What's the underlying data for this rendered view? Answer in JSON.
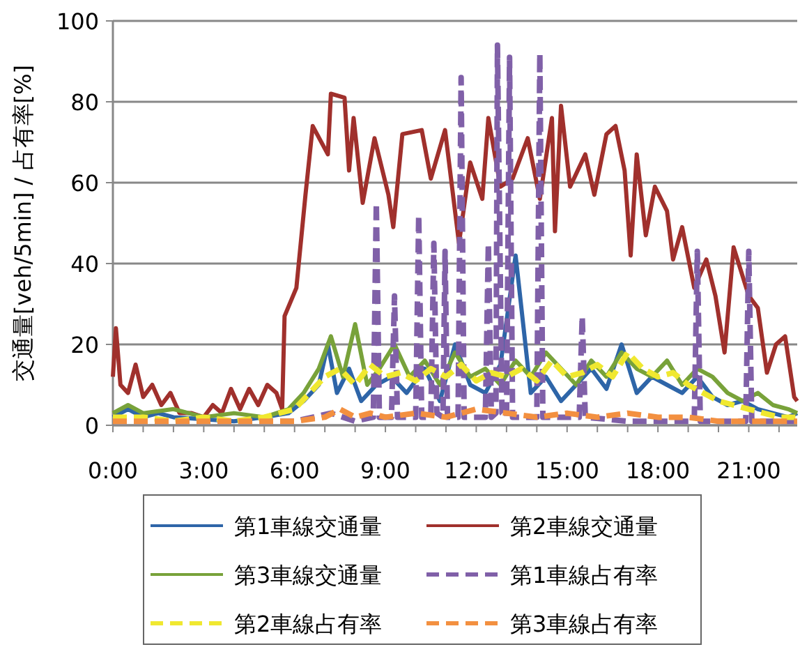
{
  "chart_data": {
    "type": "line",
    "ylabel": "交通量[veh/5min] / 占有率[%]",
    "xlim": [
      0,
      22.6
    ],
    "ylim": [
      0,
      100
    ],
    "xticks": [
      {
        "value": 0,
        "label": "0:00"
      },
      {
        "value": 1,
        "label": null
      },
      {
        "value": 2,
        "label": null
      },
      {
        "value": 3,
        "label": "3:00"
      },
      {
        "value": 4,
        "label": null
      },
      {
        "value": 5,
        "label": null
      },
      {
        "value": 6,
        "label": "6:00"
      },
      {
        "value": 7,
        "label": null
      },
      {
        "value": 8,
        "label": null
      },
      {
        "value": 9,
        "label": "9:00"
      },
      {
        "value": 10,
        "label": null
      },
      {
        "value": 11,
        "label": null
      },
      {
        "value": 12,
        "label": "12:00"
      },
      {
        "value": 13,
        "label": null
      },
      {
        "value": 14,
        "label": null
      },
      {
        "value": 15,
        "label": "15:00"
      },
      {
        "value": 16,
        "label": null
      },
      {
        "value": 17,
        "label": null
      },
      {
        "value": 18,
        "label": "18:00"
      },
      {
        "value": 19,
        "label": null
      },
      {
        "value": 20,
        "label": null
      },
      {
        "value": 21,
        "label": "21:00"
      },
      {
        "value": 22,
        "label": null
      }
    ],
    "yticks": [
      0,
      20,
      40,
      60,
      80,
      100
    ],
    "grid": "y",
    "legend": "bottom",
    "series": [
      {
        "name": "第1車線交通量",
        "color": "#2e65a8",
        "line_style": "solid",
        "x": [
          0,
          0.5,
          1,
          1.5,
          2,
          4,
          5,
          5.8,
          6.3,
          6.8,
          7.1,
          7.4,
          7.8,
          8.2,
          8.7,
          9.2,
          9.7,
          10.3,
          10.8,
          11.3,
          11.8,
          12.3,
          12.8,
          13.3,
          13.8,
          14.3,
          14.8,
          15.3,
          15.8,
          16.3,
          16.8,
          17.3,
          17.8,
          18.3,
          18.8,
          19.3,
          19.8,
          20.3,
          20.8,
          21.3,
          21.8,
          22.3,
          22.6
        ],
        "values": [
          2,
          4,
          2,
          3,
          2,
          1,
          2,
          3,
          6,
          10,
          20,
          8,
          14,
          6,
          10,
          12,
          8,
          14,
          6,
          20,
          10,
          8,
          15,
          42,
          8,
          12,
          6,
          10,
          14,
          9,
          20,
          8,
          12,
          10,
          8,
          12,
          7,
          5,
          6,
          4,
          3,
          2,
          3
        ]
      },
      {
        "name": "第2車線交通量",
        "color": "#a0302c",
        "line_style": "solid",
        "x": [
          0,
          0.1,
          0.25,
          0.5,
          0.75,
          1.0,
          1.3,
          1.6,
          1.9,
          2.2,
          2.6,
          3.0,
          3.3,
          3.6,
          3.9,
          4.2,
          4.5,
          4.8,
          5.1,
          5.4,
          5.59,
          5.67,
          6.06,
          6.36,
          6.6,
          7.1,
          7.2,
          7.65,
          7.8,
          7.95,
          8.25,
          8.64,
          9.1,
          9.26,
          9.56,
          10.2,
          10.5,
          10.97,
          11.43,
          11.8,
          12.2,
          12.4,
          12.8,
          13.2,
          13.7,
          14.1,
          14.5,
          14.6,
          14.8,
          15.1,
          15.6,
          15.9,
          16.3,
          16.6,
          16.9,
          17.1,
          17.3,
          17.6,
          17.9,
          18.3,
          18.5,
          18.8,
          19.2,
          19.6,
          19.9,
          20.2,
          20.5,
          21.0,
          21.3,
          21.6,
          21.9,
          22.2,
          22.5,
          22.6
        ],
        "values": [
          12,
          24,
          10,
          8,
          15,
          7,
          10,
          5,
          8,
          3,
          3,
          2,
          5,
          3,
          9,
          4,
          9,
          5,
          10,
          8,
          4,
          27,
          34,
          57,
          74,
          67,
          82,
          81,
          63,
          76,
          55,
          71,
          57,
          49,
          72,
          73,
          61,
          73,
          45,
          65,
          56,
          76,
          59,
          61,
          71,
          56,
          76,
          48,
          79,
          59,
          67,
          57,
          72,
          74,
          63,
          42,
          67,
          47,
          59,
          53,
          41,
          49,
          34,
          41,
          32,
          18,
          44,
          32,
          29,
          13,
          20,
          22,
          7,
          6
        ]
      },
      {
        "name": "第3車線交通量",
        "color": "#78a23a",
        "line_style": "solid",
        "x": [
          0,
          0.5,
          1,
          2,
          3,
          4,
          5,
          5.8,
          6.3,
          6.8,
          7.2,
          7.6,
          8.0,
          8.4,
          8.8,
          9.3,
          9.8,
          10.3,
          10.8,
          11.3,
          11.8,
          12.3,
          12.8,
          13.3,
          13.8,
          14.3,
          14.8,
          15.3,
          15.8,
          16.3,
          16.8,
          17.3,
          17.8,
          18.3,
          18.8,
          19.3,
          19.8,
          20.3,
          20.8,
          21.3,
          21.8,
          22.3,
          22.6
        ],
        "values": [
          3,
          5,
          3,
          4,
          2,
          3,
          2,
          4,
          8,
          14,
          22,
          12,
          25,
          10,
          14,
          20,
          12,
          16,
          10,
          18,
          12,
          14,
          10,
          16,
          12,
          18,
          14,
          10,
          16,
          12,
          18,
          14,
          12,
          16,
          10,
          14,
          12,
          8,
          6,
          8,
          5,
          4,
          3
        ]
      },
      {
        "name": "第1車線占有率",
        "color": "#8060a8",
        "line_style": "dashed",
        "x": [
          0,
          2,
          4,
          6,
          7.2,
          8.0,
          8.6,
          8.7,
          8.8,
          9.2,
          9.3,
          9.4,
          10.0,
          10.1,
          10.2,
          10.5,
          10.6,
          10.7,
          10.9,
          10.97,
          11.05,
          11.4,
          11.5,
          11.6,
          12.3,
          12.4,
          12.5,
          12.65,
          12.7,
          12.85,
          13.0,
          13.1,
          13.2,
          14.0,
          14.1,
          14.2,
          15.4,
          15.5,
          15.6,
          17.0,
          19.2,
          19.3,
          19.4,
          20.9,
          21.0,
          21.1,
          22.6
        ],
        "values": [
          1,
          1,
          1,
          1,
          3,
          1,
          2,
          55,
          2,
          2,
          32,
          2,
          2,
          52,
          2,
          2,
          45,
          3,
          2,
          43,
          2,
          2,
          86,
          2,
          2,
          45,
          2,
          3,
          94,
          3,
          2,
          91,
          2,
          2,
          92,
          2,
          2,
          27,
          2,
          1,
          1,
          43,
          1,
          1,
          43,
          1,
          1
        ]
      },
      {
        "name": "第2車線占有率",
        "color": "#f0e830",
        "line_style": "dashed",
        "x": [
          0,
          1,
          2,
          3,
          4,
          5,
          6,
          6.5,
          7.0,
          7.5,
          8.0,
          8.5,
          9.0,
          9.5,
          10.0,
          10.5,
          11.0,
          11.5,
          12.0,
          12.5,
          13.0,
          13.5,
          14.0,
          14.5,
          15.0,
          15.5,
          16.0,
          16.5,
          17.0,
          17.5,
          18.0,
          18.5,
          19.0,
          19.5,
          20.0,
          20.5,
          21.0,
          21.5,
          22.0,
          22.6
        ],
        "values": [
          2,
          2,
          1,
          2,
          1,
          2,
          4,
          8,
          12,
          14,
          10,
          15,
          12,
          13,
          11,
          14,
          12,
          15,
          11,
          13,
          12,
          14,
          11,
          16,
          12,
          13,
          15,
          12,
          18,
          14,
          12,
          13,
          10,
          8,
          6,
          5,
          4,
          3,
          2,
          2
        ]
      },
      {
        "name": "第3車線占有率",
        "color": "#f39040",
        "line_style": "dashed",
        "x": [
          0,
          1,
          2,
          3,
          4,
          5,
          6,
          7,
          7.5,
          8,
          8.5,
          9,
          10,
          11,
          12,
          13,
          14,
          15,
          16,
          17,
          18,
          19,
          20,
          21,
          22,
          22.6
        ],
        "values": [
          1,
          1,
          1,
          1,
          1,
          1,
          1,
          2,
          4,
          2,
          3,
          2,
          3,
          2,
          4,
          3,
          2,
          3,
          2,
          3,
          2,
          2,
          1,
          1,
          1,
          1
        ]
      }
    ]
  }
}
